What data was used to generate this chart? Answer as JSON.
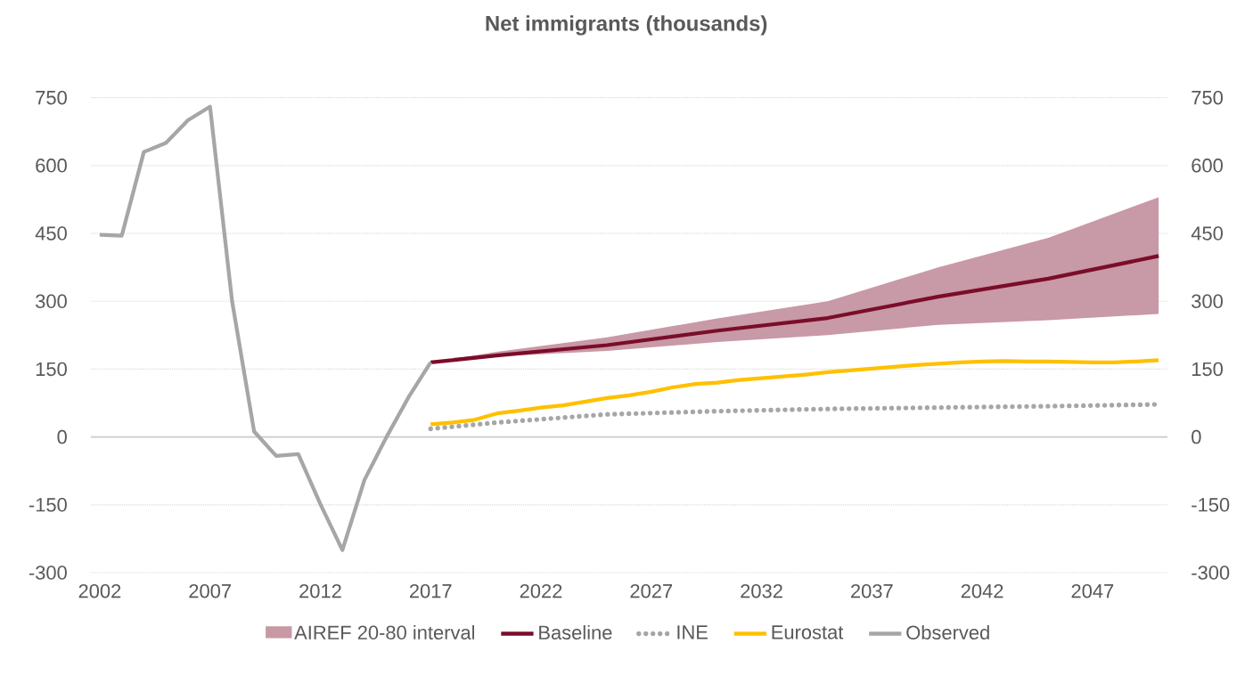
{
  "chart_data": {
    "type": "line",
    "title": "Net immigrants (thousands)",
    "xlim": [
      2001.6,
      2050.4
    ],
    "xticks": [
      2002,
      2007,
      2012,
      2017,
      2022,
      2027,
      2032,
      2037,
      2042,
      2047
    ],
    "ylim": [
      -300,
      750
    ],
    "yticks": [
      -300,
      -150,
      0,
      150,
      300,
      450,
      600,
      750
    ],
    "y2lim": [
      -300,
      750
    ],
    "y2ticks": [
      -300,
      -150,
      0,
      150,
      300,
      450,
      600,
      750
    ],
    "grid": "y",
    "legend": "bottom",
    "annotations": [
      "AIREF 20-80 interval"
    ],
    "series": [
      {
        "name": "Baseline",
        "color": "#7b0c2a",
        "x": [
          2017,
          2020,
          2025,
          2030,
          2035,
          2040,
          2045,
          2050
        ],
        "values": [
          165,
          180,
          203,
          235,
          263,
          310,
          350,
          400
        ],
        "lower": [
          165,
          178,
          190,
          210,
          225,
          248,
          258,
          272
        ],
        "upper": [
          165,
          188,
          220,
          262,
          300,
          375,
          440,
          530
        ]
      },
      {
        "name": "INE",
        "color": "#a6a6a6",
        "line_style": "dotted",
        "x": [
          2017,
          2020,
          2025,
          2030,
          2035,
          2040,
          2045,
          2050
        ],
        "values": [
          18,
          32,
          50,
          57,
          62,
          65,
          68,
          72
        ]
      },
      {
        "name": "Eurostat",
        "color": "#ffc000",
        "x": [
          2017,
          2018,
          2019,
          2020,
          2021,
          2022,
          2023,
          2024,
          2025,
          2026,
          2027,
          2028,
          2029,
          2030,
          2031,
          2032,
          2033,
          2034,
          2035,
          2036,
          2037,
          2038,
          2039,
          2040,
          2041,
          2042,
          2043,
          2044,
          2045,
          2046,
          2047,
          2048,
          2049,
          2050
        ],
        "values": [
          28,
          32,
          38,
          52,
          58,
          65,
          70,
          78,
          86,
          92,
          100,
          110,
          117,
          120,
          126,
          130,
          134,
          138,
          143,
          147,
          151,
          155,
          159,
          162,
          165,
          167,
          168,
          167,
          167,
          166,
          165,
          165,
          167,
          170
        ]
      },
      {
        "name": "Observed",
        "color": "#a6a6a6",
        "x": [
          2002,
          2003,
          2004,
          2005,
          2006,
          2007,
          2008,
          2009,
          2010,
          2011,
          2012,
          2013,
          2014,
          2015,
          2016,
          2017
        ],
        "values": [
          447,
          445,
          630,
          650,
          700,
          730,
          300,
          12,
          -42,
          -38,
          -148,
          -250,
          -95,
          0,
          88,
          165
        ]
      }
    ]
  }
}
